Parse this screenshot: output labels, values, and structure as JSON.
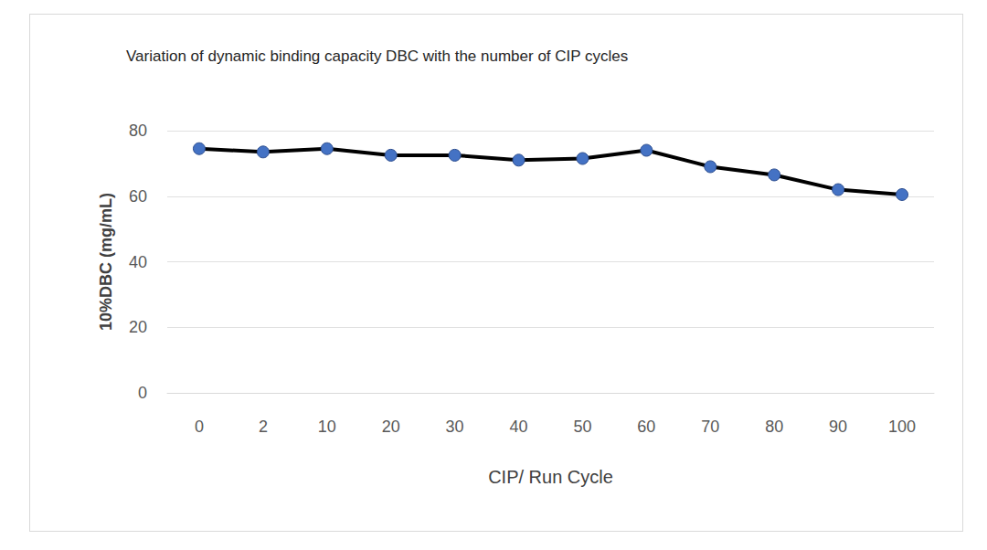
{
  "chart_data": {
    "type": "line",
    "title": "Variation of dynamic binding capacity DBC with the number of CIP cycles",
    "x_label": "CIP/ Run Cycle",
    "y_label": "10%DBC (mg/mL)",
    "categories": [
      "0",
      "2",
      "10",
      "20",
      "30",
      "40",
      "50",
      "60",
      "70",
      "80",
      "90",
      "100"
    ],
    "values": [
      74.5,
      73.5,
      74.5,
      72.5,
      72.5,
      71,
      71.5,
      74,
      69,
      66.5,
      62,
      60.5
    ],
    "color": "#000000",
    "marker": "circle",
    "ylim": [
      0,
      80
    ],
    "yticks": [
      0,
      20,
      40,
      60,
      80
    ],
    "grid": true
  }
}
